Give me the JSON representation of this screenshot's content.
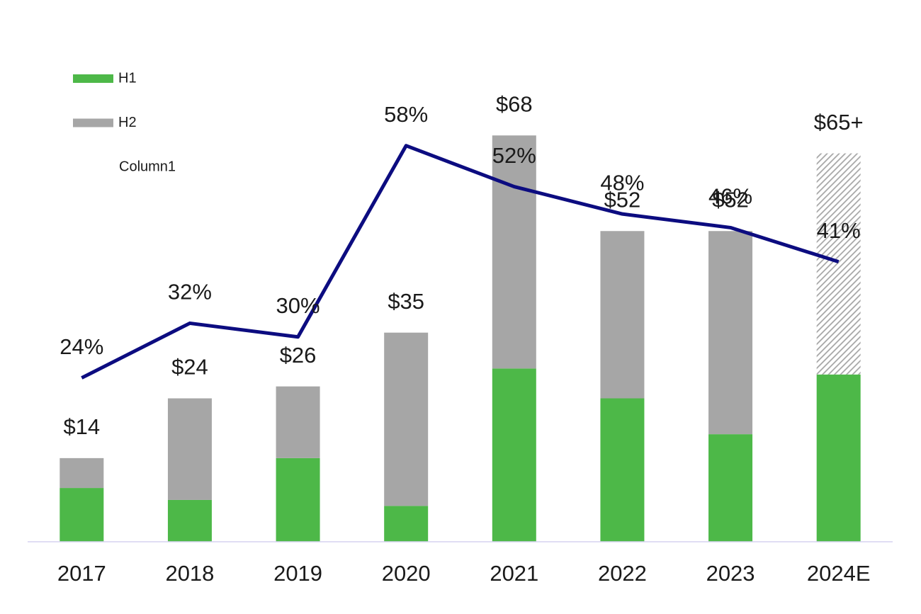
{
  "chart_data": {
    "type": "bar",
    "categories": [
      "2017",
      "2018",
      "2019",
      "2020",
      "2021",
      "2022",
      "2023",
      "2024E"
    ],
    "series": [
      {
        "name": "H1",
        "color": "#4db848",
        "values": [
          9,
          7,
          14,
          6,
          29,
          24,
          18,
          28
        ]
      },
      {
        "name": "H2",
        "color": "#a6a6a6",
        "values": [
          5,
          17,
          12,
          29,
          39,
          28,
          34,
          37
        ],
        "hatched": [
          false,
          false,
          false,
          false,
          false,
          false,
          false,
          true
        ]
      },
      {
        "name": "Column1",
        "type": "line",
        "axis": "y2",
        "color": "#0c0c80",
        "values": [
          24,
          32,
          30,
          58,
          52,
          48,
          46,
          41
        ],
        "value_labels": [
          "24%",
          "32%",
          "30%",
          "58%",
          "52%",
          "48%",
          "46%",
          "41%"
        ]
      }
    ],
    "totals": {
      "values": [
        14,
        24,
        26,
        35,
        68,
        52,
        52,
        65
      ],
      "value_labels": [
        "$14",
        "$24",
        "$26",
        "$35",
        "$68",
        "$52",
        "$52",
        "$65+"
      ]
    },
    "ylim": [
      0,
      80
    ],
    "y2lim": [
      0,
      70
    ],
    "stacked": true,
    "legend": "top-left"
  }
}
